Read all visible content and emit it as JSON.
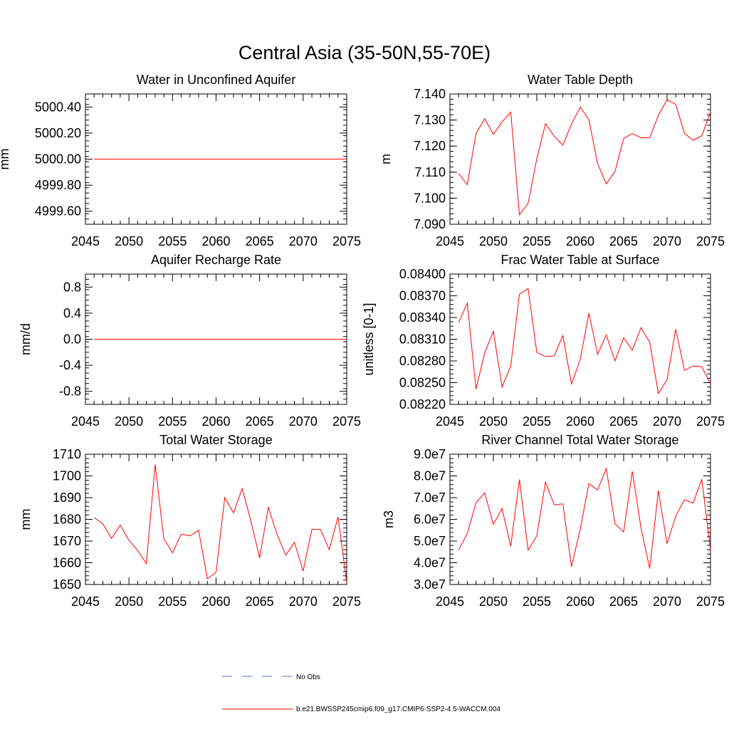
{
  "title": "Central Asia (35-50N,55-70E)",
  "colors": {
    "model": "#ff0000",
    "obs": "#5a6bd1",
    "axis": "#000000"
  },
  "legend": {
    "obs_label": "No Obs",
    "model_label": "b.e21.BWSSP245cmip6.f09_g17.CMIP6-SSP2-4.5-WACCM.004"
  },
  "chart_data": [
    {
      "type": "line",
      "title": "Water in Unconfined Aquifer",
      "ylabel": "mm",
      "xlim": [
        2045,
        2075
      ],
      "ylim": [
        4999.5,
        5000.5
      ],
      "xticks": [
        2045,
        2050,
        2055,
        2060,
        2065,
        2070,
        2075
      ],
      "xtick_labels": [
        "2045",
        "2050",
        "2055",
        "2060",
        "2065",
        "2070",
        "2075"
      ],
      "yticks": [
        4999.6,
        4999.8,
        5000.0,
        5000.2,
        5000.4
      ],
      "ytick_labels": [
        "4999.60",
        "4999.80",
        "5000.00",
        "5000.20",
        "5000.40"
      ],
      "x": [
        2046,
        2047,
        2048,
        2049,
        2050,
        2051,
        2052,
        2053,
        2054,
        2055,
        2056,
        2057,
        2058,
        2059,
        2060,
        2061,
        2062,
        2063,
        2064,
        2065,
        2066,
        2067,
        2068,
        2069,
        2070,
        2071,
        2072,
        2073,
        2074,
        2075
      ],
      "series": [
        {
          "values": [
            5000,
            5000,
            5000,
            5000,
            5000,
            5000,
            5000,
            5000,
            5000,
            5000,
            5000,
            5000,
            5000,
            5000,
            5000,
            5000,
            5000,
            5000,
            5000,
            5000,
            5000,
            5000,
            5000,
            5000,
            5000,
            5000,
            5000,
            5000,
            5000,
            5000
          ]
        }
      ]
    },
    {
      "type": "line",
      "title": "Water Table Depth",
      "ylabel": "m",
      "xlim": [
        2045,
        2075
      ],
      "ylim": [
        7.09,
        7.14
      ],
      "xticks": [
        2045,
        2050,
        2055,
        2060,
        2065,
        2070,
        2075
      ],
      "xtick_labels": [
        "2045",
        "2050",
        "2055",
        "2060",
        "2065",
        "2070",
        "2075"
      ],
      "yticks": [
        7.09,
        7.1,
        7.11,
        7.12,
        7.13,
        7.14
      ],
      "ytick_labels": [
        "7.090",
        "7.100",
        "7.110",
        "7.120",
        "7.130",
        "7.140"
      ],
      "x": [
        2046,
        2047,
        2048,
        2049,
        2050,
        2051,
        2052,
        2053,
        2054,
        2055,
        2056,
        2057,
        2058,
        2059,
        2060,
        2061,
        2062,
        2063,
        2064,
        2065,
        2066,
        2067,
        2068,
        2069,
        2070,
        2071,
        2072,
        2073,
        2074,
        2075
      ],
      "series": [
        {
          "values": [
            7.1095,
            7.1052,
            7.1248,
            7.1305,
            7.1245,
            7.1293,
            7.1331,
            7.0937,
            7.098,
            7.1151,
            7.1286,
            7.1238,
            7.1204,
            7.1285,
            7.135,
            7.1301,
            7.1133,
            7.1055,
            7.1102,
            7.1229,
            7.1248,
            7.1232,
            7.1232,
            7.1318,
            7.1378,
            7.136,
            7.1249,
            7.1222,
            7.124,
            7.133
          ]
        }
      ]
    },
    {
      "type": "line",
      "title": "Aquifer Recharge Rate",
      "ylabel": "mm/d",
      "xlim": [
        2045,
        2075
      ],
      "ylim": [
        -1.0,
        1.0
      ],
      "xticks": [
        2045,
        2050,
        2055,
        2060,
        2065,
        2070,
        2075
      ],
      "xtick_labels": [
        "2045",
        "2050",
        "2055",
        "2060",
        "2065",
        "2070",
        "2075"
      ],
      "yticks": [
        -0.8,
        -0.4,
        0.0,
        0.4,
        0.8
      ],
      "ytick_labels": [
        "-0.8",
        "-0.4",
        "0.0",
        "0.4",
        "0.8"
      ],
      "x": [
        2046,
        2047,
        2048,
        2049,
        2050,
        2051,
        2052,
        2053,
        2054,
        2055,
        2056,
        2057,
        2058,
        2059,
        2060,
        2061,
        2062,
        2063,
        2064,
        2065,
        2066,
        2067,
        2068,
        2069,
        2070,
        2071,
        2072,
        2073,
        2074,
        2075
      ],
      "series": [
        {
          "values": [
            0,
            0,
            0,
            0,
            0,
            0,
            0,
            0,
            0,
            0,
            0,
            0,
            0,
            0,
            0,
            0,
            0,
            0,
            0,
            0,
            0,
            0,
            0,
            0,
            0,
            0,
            0,
            0,
            0,
            0
          ]
        }
      ]
    },
    {
      "type": "line",
      "title": "Frac Water Table at Surface",
      "ylabel": "unitless [0-1]",
      "xlim": [
        2045,
        2075
      ],
      "ylim": [
        0.0822,
        0.084
      ],
      "xticks": [
        2045,
        2050,
        2055,
        2060,
        2065,
        2070,
        2075
      ],
      "xtick_labels": [
        "2045",
        "2050",
        "2055",
        "2060",
        "2065",
        "2070",
        "2075"
      ],
      "yticks": [
        0.0822,
        0.0825,
        0.0828,
        0.0831,
        0.0834,
        0.0837,
        0.084
      ],
      "ytick_labels": [
        "0.08220",
        "0.08250",
        "0.08280",
        "0.08310",
        "0.08340",
        "0.08370",
        "0.08400"
      ],
      "x": [
        2046,
        2047,
        2048,
        2049,
        2050,
        2051,
        2052,
        2053,
        2054,
        2055,
        2056,
        2057,
        2058,
        2059,
        2060,
        2061,
        2062,
        2063,
        2064,
        2065,
        2066,
        2067,
        2068,
        2069,
        2070,
        2071,
        2072,
        2073,
        2074,
        2075
      ],
      "series": [
        {
          "values": [
            0.08333,
            0.0836,
            0.08241,
            0.08291,
            0.08321,
            0.08244,
            0.08273,
            0.08372,
            0.0838,
            0.08292,
            0.08286,
            0.08287,
            0.08315,
            0.08248,
            0.08282,
            0.08346,
            0.08289,
            0.08316,
            0.0828,
            0.08312,
            0.08295,
            0.08326,
            0.08306,
            0.08235,
            0.08254,
            0.08324,
            0.08267,
            0.08273,
            0.08272,
            0.08248
          ]
        }
      ]
    },
    {
      "type": "line",
      "title": "Total Water Storage",
      "ylabel": "mm",
      "xlim": [
        2045,
        2075
      ],
      "ylim": [
        1650,
        1710
      ],
      "xticks": [
        2045,
        2050,
        2055,
        2060,
        2065,
        2070,
        2075
      ],
      "xtick_labels": [
        "2045",
        "2050",
        "2055",
        "2060",
        "2065",
        "2070",
        "2075"
      ],
      "yticks": [
        1650,
        1660,
        1670,
        1680,
        1690,
        1700,
        1710
      ],
      "ytick_labels": [
        "1650",
        "1660",
        "1670",
        "1680",
        "1690",
        "1700",
        "1710"
      ],
      "x": [
        2046,
        2047,
        2048,
        2049,
        2050,
        2051,
        2052,
        2053,
        2054,
        2055,
        2056,
        2057,
        2058,
        2059,
        2060,
        2061,
        2062,
        2063,
        2064,
        2065,
        2066,
        2067,
        2068,
        2069,
        2070,
        2071,
        2072,
        2073,
        2074,
        2075
      ],
      "series": [
        {
          "values": [
            1680.8,
            1677.9,
            1671.2,
            1677.3,
            1670.3,
            1665.6,
            1659.6,
            1705.2,
            1671.1,
            1664.6,
            1673.2,
            1672.4,
            1675.0,
            1652.6,
            1655.6,
            1690.0,
            1683.0,
            1694.2,
            1679.2,
            1662.2,
            1685.6,
            1673.1,
            1663.5,
            1669.4,
            1656.2,
            1675.4,
            1675.3,
            1666.0,
            1681.1,
            1651.0
          ]
        }
      ]
    },
    {
      "type": "line",
      "title": "River Channel Total Water Storage",
      "ylabel": "m3",
      "xlim": [
        2045,
        2075
      ],
      "ylim": [
        30000000,
        90000000
      ],
      "xticks": [
        2045,
        2050,
        2055,
        2060,
        2065,
        2070,
        2075
      ],
      "xtick_labels": [
        "2045",
        "2050",
        "2055",
        "2060",
        "2065",
        "2070",
        "2075"
      ],
      "yticks": [
        30000000,
        40000000,
        50000000,
        60000000,
        70000000,
        80000000,
        90000000
      ],
      "ytick_labels": [
        "3.0e7",
        "4.0e7",
        "5.0e7",
        "6.0e7",
        "7.0e7",
        "8.0e7",
        "9.0e7"
      ],
      "x": [
        2046,
        2047,
        2048,
        2049,
        2050,
        2051,
        2052,
        2053,
        2054,
        2055,
        2056,
        2057,
        2058,
        2059,
        2060,
        2061,
        2062,
        2063,
        2064,
        2065,
        2066,
        2067,
        2068,
        2069,
        2070,
        2071,
        2072,
        2073,
        2074,
        2075
      ],
      "series": [
        {
          "values": [
            45800000,
            53500000,
            67600000,
            72200000,
            57700000,
            65000000,
            47600000,
            78400000,
            45800000,
            52400000,
            77100000,
            66700000,
            67100000,
            38200000,
            55400000,
            76500000,
            73500000,
            83400000,
            58000000,
            54200000,
            82100000,
            56000000,
            37300000,
            73200000,
            48800000,
            61500000,
            69000000,
            67500000,
            78500000,
            46000000
          ]
        }
      ]
    }
  ]
}
